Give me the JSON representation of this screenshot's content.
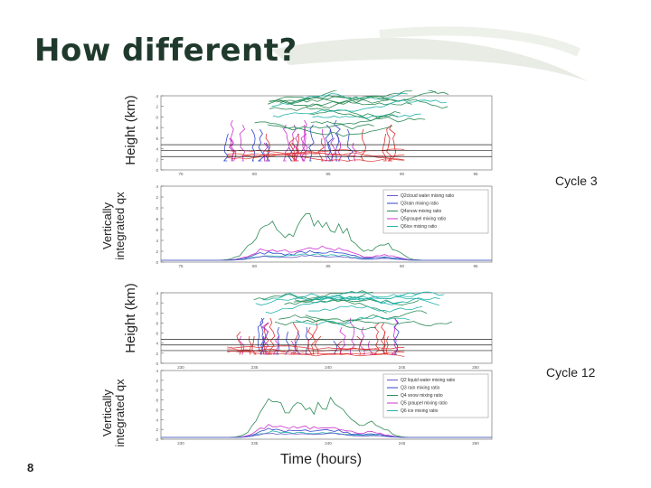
{
  "slide": {
    "title": "How different?",
    "page_number": "8",
    "x_axis_label": "Time (hours)"
  },
  "labels": {
    "height_top": "Height (km)",
    "vint_top": "Vertically integrated qx",
    "height_bottom": "Height (km)",
    "vint_bottom": "Vertically integrated qx",
    "cycle_top": "Cycle 3",
    "cycle_bottom": "Cycle 12"
  },
  "panels": {
    "top_height": {
      "ticks_y": [
        "14",
        "12",
        "10",
        "8",
        "6",
        "4",
        "2",
        "0"
      ],
      "ticks_x": [
        "75",
        "80",
        "85",
        "90",
        "95"
      ]
    },
    "top_vint": {
      "ticks_y": [
        "1.4",
        "1.2",
        "1.0",
        "0.8",
        "0.6",
        "0.4",
        "0.2",
        "0.0"
      ],
      "ticks_x": [
        "75",
        "80",
        "85",
        "90",
        "95"
      ],
      "legend": [
        "Q2cloud water mixing ratio",
        "Q3rain mixing ratio",
        "Q4snow mixing ratio",
        "Q5graupel mixing ratio",
        "Q6ice mixing ratio"
      ]
    },
    "bottom_height": {
      "ticks_y": [
        "14",
        "12",
        "10",
        "8",
        "6",
        "4",
        "2",
        "0"
      ],
      "ticks_x": [
        "230",
        "235",
        "240",
        "245",
        "250"
      ]
    },
    "bottom_vint": {
      "ticks_y": [
        "1.4",
        "1.2",
        "1.0",
        "0.8",
        "0.6",
        "0.4",
        "0.2",
        "0.0"
      ],
      "ticks_x": [
        "230",
        "235",
        "240",
        "245",
        "250"
      ],
      "legend": [
        "Q2 liquid water mixing ratio",
        "Q3 rain mixing ratio",
        "Q4 snow mixing ratio",
        "Q5 graupel mixing ratio",
        "Q6 ice mixing ratio"
      ]
    }
  },
  "colors": {
    "title": "#1f3a2c",
    "cloud_water": "#6a5acd",
    "rain": "#3344cc",
    "snow": "#2e8b57",
    "graupel": "#cc33cc",
    "ice": "#20b2aa",
    "red": "#dd3333",
    "axis": "#444444"
  }
}
